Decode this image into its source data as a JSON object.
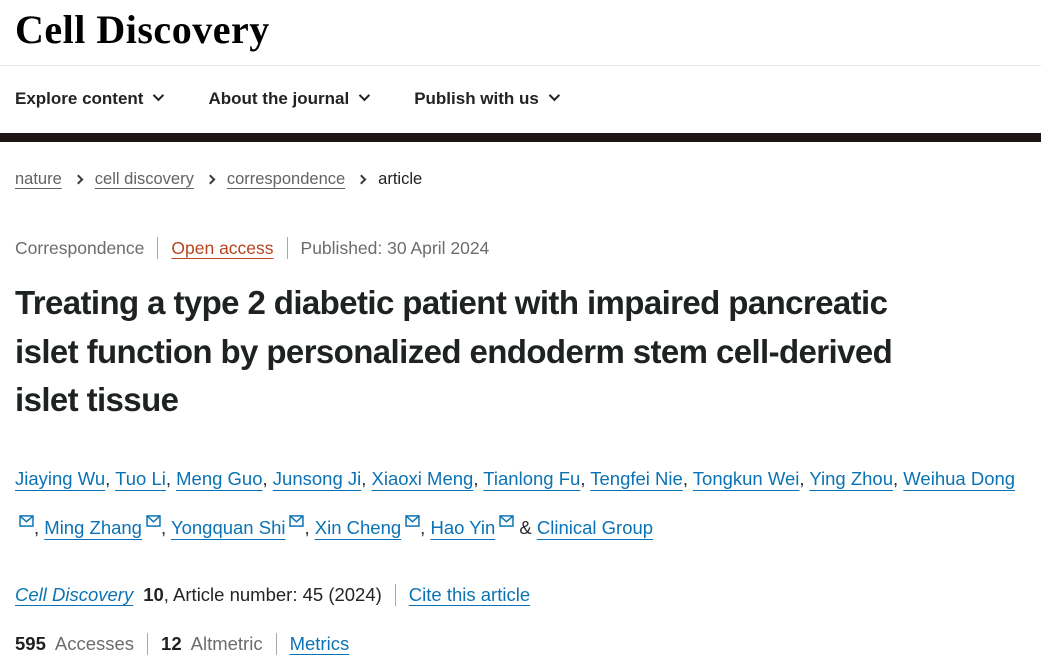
{
  "journal": {
    "logo": "Cell Discovery"
  },
  "nav": {
    "items": [
      {
        "label": "Explore content"
      },
      {
        "label": "About the journal"
      },
      {
        "label": "Publish with us"
      }
    ]
  },
  "breadcrumb": {
    "items": [
      {
        "label": "nature",
        "link": true
      },
      {
        "label": "cell discovery",
        "link": true
      },
      {
        "label": "correspondence",
        "link": true
      },
      {
        "label": "article",
        "link": false
      }
    ]
  },
  "article_meta": {
    "type": "Correspondence",
    "access": "Open access",
    "published": "Published: 30 April 2024"
  },
  "title": "Treating a type 2 diabetic patient with impaired pancreatic islet function by personalized endoderm stem cell-derived islet tissue",
  "authors": {
    "list": [
      {
        "name": "Jiaying Wu",
        "email": false
      },
      {
        "name": "Tuo Li",
        "email": false
      },
      {
        "name": "Meng Guo",
        "email": false
      },
      {
        "name": "Junsong Ji",
        "email": false
      },
      {
        "name": "Xiaoxi Meng",
        "email": false
      },
      {
        "name": "Tianlong Fu",
        "email": false
      },
      {
        "name": "Tengfei Nie",
        "email": false
      },
      {
        "name": "Tongkun Wei",
        "email": false
      },
      {
        "name": "Ying Zhou",
        "email": false
      },
      {
        "name": "Weihua Dong",
        "email": true
      },
      {
        "name": "Ming Zhang",
        "email": true
      },
      {
        "name": "Yongquan Shi",
        "email": true
      },
      {
        "name": "Xin Cheng",
        "email": true
      },
      {
        "name": "Hao Yin",
        "email": true
      },
      {
        "name": "Clinical Group",
        "email": false
      }
    ],
    "separator": ", ",
    "last_separator": " & "
  },
  "citation": {
    "journal": "Cell Discovery",
    "volume": "10",
    "article_info": ", Article number: 45 (2024)",
    "cite_link": "Cite this article"
  },
  "metrics": {
    "accesses_count": "595",
    "accesses_label": "Accesses",
    "altmetric_count": "12",
    "altmetric_label": "Altmetric",
    "metrics_link": "Metrics"
  },
  "icons": {
    "email": "envelope-icon",
    "nav_dropdown": "chevron-down-icon",
    "breadcrumb_separator": "chevron-right-icon"
  },
  "colors": {
    "link_blue": "#0b73b5",
    "open_access_red": "#b8441f",
    "header_bar": "#1e1614",
    "text_dark": "#222222",
    "text_gray": "#6c6c6c"
  }
}
